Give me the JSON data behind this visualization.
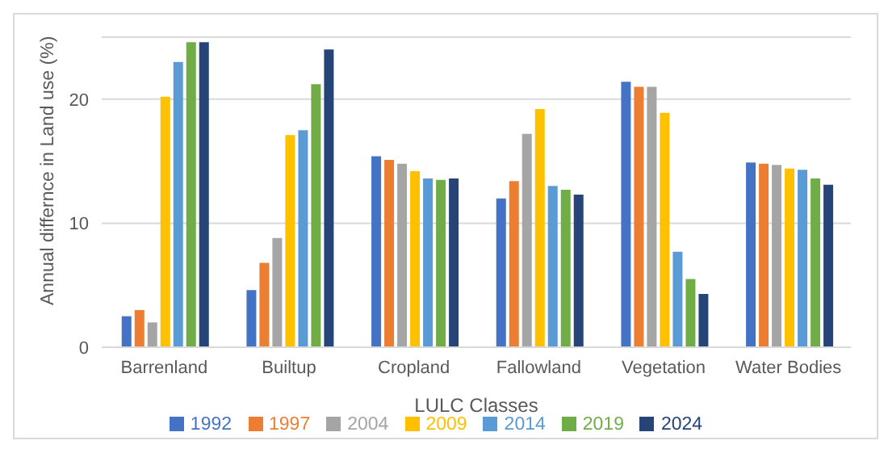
{
  "chart_data": {
    "type": "bar",
    "xlabel": "LULC Classes",
    "ylabel": "Annual differnce in Land use (%)",
    "categories": [
      "Barrenland",
      "Builtup",
      "Cropland",
      "Fallowland",
      "Vegetation",
      "Water Bodies"
    ],
    "series": [
      {
        "name": "1992",
        "color": "#4472c4",
        "values": [
          2.5,
          4.6,
          15.4,
          12.0,
          21.4,
          14.9
        ]
      },
      {
        "name": "1997",
        "color": "#ed7d31",
        "values": [
          3.0,
          6.8,
          15.1,
          13.4,
          21.0,
          14.8
        ]
      },
      {
        "name": "2004",
        "color": "#a5a5a5",
        "values": [
          2.0,
          8.8,
          14.8,
          17.2,
          21.0,
          14.7
        ]
      },
      {
        "name": "2009",
        "color": "#ffc000",
        "values": [
          20.2,
          17.1,
          14.2,
          19.2,
          18.9,
          14.4
        ]
      },
      {
        "name": "2014",
        "color": "#5b9bd5",
        "values": [
          23.0,
          17.5,
          13.6,
          13.0,
          7.7,
          14.3
        ]
      },
      {
        "name": "2019",
        "color": "#70ad47",
        "values": [
          24.6,
          21.2,
          13.5,
          12.7,
          5.5,
          13.6
        ]
      },
      {
        "name": "2024",
        "color": "#264478",
        "values": [
          24.6,
          24.0,
          13.6,
          12.3,
          4.3,
          13.1
        ]
      }
    ],
    "ylim": [
      0,
      25
    ],
    "yticks": [
      0,
      10,
      20
    ],
    "grid": "y",
    "legend": "bottom"
  }
}
